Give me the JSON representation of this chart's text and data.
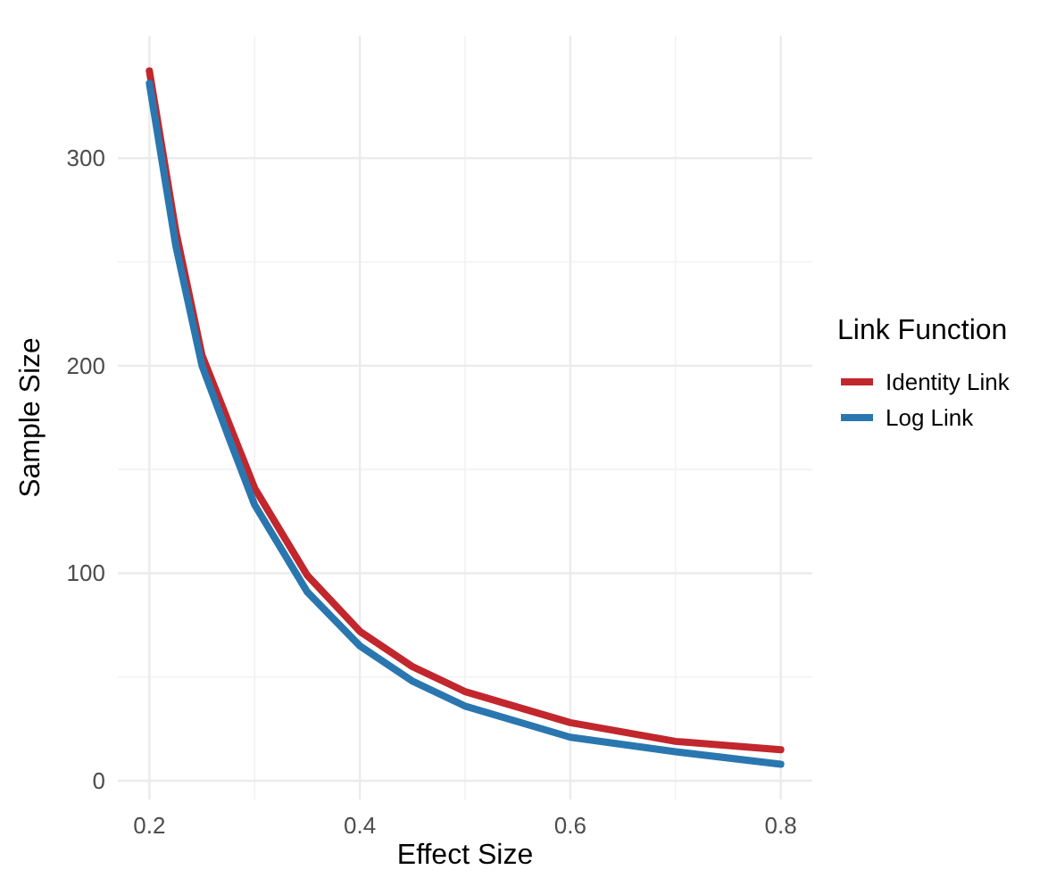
{
  "chart_data": {
    "type": "line",
    "xlabel": "Effect Size",
    "ylabel": "Sample Size",
    "legend_title": "Link Function",
    "x": [
      0.2,
      0.225,
      0.25,
      0.275,
      0.3,
      0.35,
      0.4,
      0.45,
      0.5,
      0.6,
      0.7,
      0.8
    ],
    "series": [
      {
        "name": "Identity Link",
        "color": "#c1272d",
        "values": [
          342,
          265,
          205,
          173,
          141,
          99,
          72,
          55,
          43,
          28,
          19,
          15
        ]
      },
      {
        "name": "Log Link",
        "color": "#2a77b0",
        "values": [
          336,
          258,
          200,
          166,
          133,
          91,
          65,
          48,
          36,
          21,
          14,
          8
        ]
      }
    ],
    "xlim": [
      0.17,
      0.83
    ],
    "xticks": [
      0.2,
      0.4,
      0.6,
      0.8
    ],
    "ylim": [
      -9,
      359
    ],
    "yticks": [
      0,
      100,
      200,
      300
    ],
    "grid": true,
    "legend": "right",
    "line_style": "solid"
  }
}
